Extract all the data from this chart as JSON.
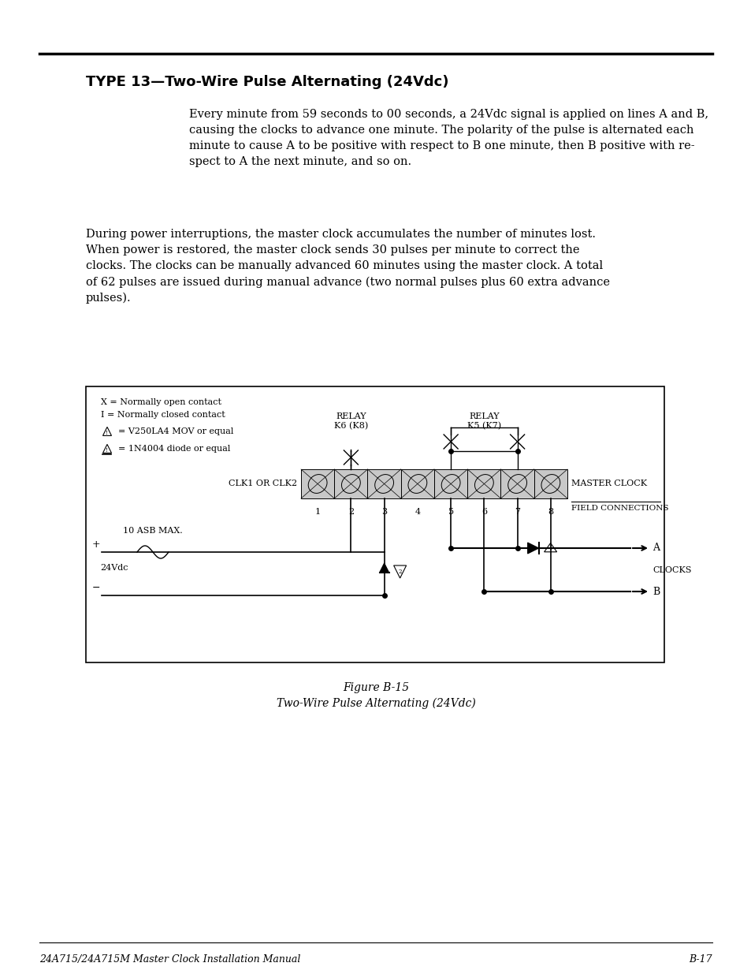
{
  "title": "TYPE 13—Two-Wire Pulse Alternating (24Vdc)",
  "title_fontsize": 13,
  "body_text_1": "Every minute from 59 seconds to 00 seconds, a 24Vdc signal is applied on lines A and B,\ncausing the clocks to advance one minute. The polarity of the pulse is alternated each\nminute to cause A to be positive with respect to B one minute, then B positive with re-\nspect to A the next minute, and so on.",
  "body_text_2": "During power interruptions, the master clock accumulates the number of minutes lost.\nWhen power is restored, the master clock sends 30 pulses per minute to correct the\nclocks. The clocks can be manually advanced 60 minutes using the master clock. A total\nof 62 pulses are issued during manual advance (two normal pulses plus 60 extra advance\npulses).",
  "body_text_fontsize": 10.5,
  "figure_caption_1": "Figure B-15",
  "figure_caption_2": "Two-Wire Pulse Alternating (24Vdc)",
  "caption_fontsize": 10,
  "footer_left": "24A715/24A715M Master Clock Installation Manual",
  "footer_right": "B-17",
  "footer_fontsize": 9,
  "bg_color": "#ffffff",
  "text_color": "#000000"
}
